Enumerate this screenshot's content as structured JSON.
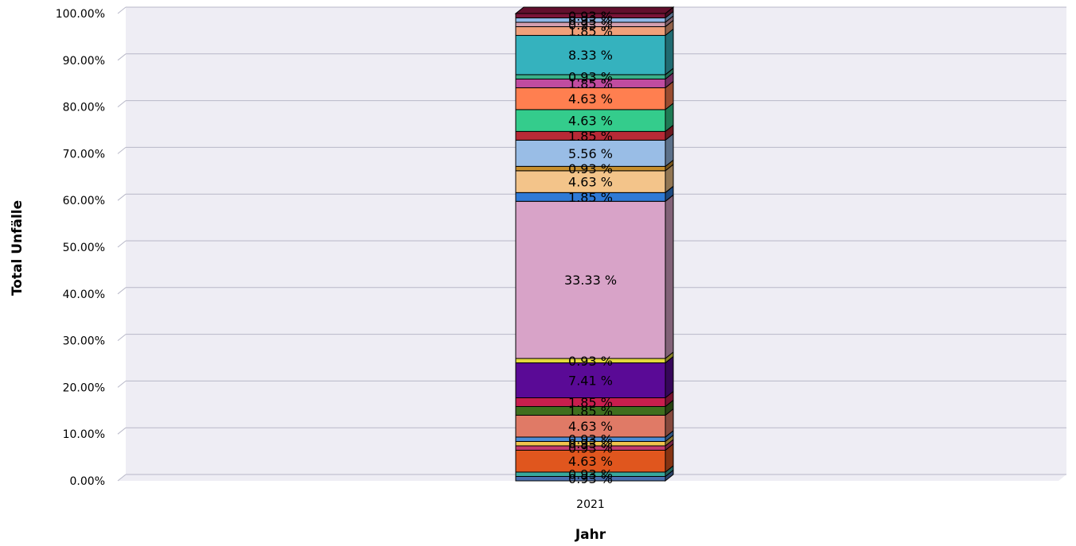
{
  "chart_data": {
    "type": "bar",
    "stacked": true,
    "percent_stacked": true,
    "three_d": true,
    "categories": [
      "2021"
    ],
    "xlabel": "Jahr",
    "ylabel": "Total Unfälle",
    "ylim": [
      0,
      100
    ],
    "yticks": [
      "0.00%",
      "10.00%",
      "20.00%",
      "30.00%",
      "40.00%",
      "50.00%",
      "60.00%",
      "70.00%",
      "80.00%",
      "90.00%",
      "100.00%"
    ],
    "grid": true,
    "legend": "none",
    "series": [
      {
        "values": [
          0.93
        ],
        "label": "0.93 %",
        "color": "#4a6fb0"
      },
      {
        "values": [
          0.93
        ],
        "label": "0.93 %",
        "color": "#38a89d"
      },
      {
        "values": [
          4.63
        ],
        "label": "4.63 %",
        "color": "#e0561e"
      },
      {
        "values": [
          0.93
        ],
        "label": "0.93 %",
        "color": "#c43a6e"
      },
      {
        "values": [
          0.93
        ],
        "label": "0.93 %",
        "color": "#f2c44d"
      },
      {
        "values": [
          0.93
        ],
        "label": "0.93 %",
        "color": "#4d8ed8"
      },
      {
        "values": [
          4.63
        ],
        "label": "4.63 %",
        "color": "#e07a66"
      },
      {
        "values": [
          1.85
        ],
        "label": "1.85 %",
        "color": "#3f6e1e"
      },
      {
        "values": [
          1.85
        ],
        "label": "1.85 %",
        "color": "#c81e4e"
      },
      {
        "values": [
          7.41
        ],
        "label": "7.41 %",
        "color": "#5a0a96"
      },
      {
        "values": [
          0.93
        ],
        "label": "0.93 %",
        "color": "#e4d93c"
      },
      {
        "values": [
          33.33
        ],
        "label": "33.33 %",
        "color": "#d8a3c8"
      },
      {
        "values": [
          1.85
        ],
        "label": "1.85 %",
        "color": "#2f7ad6"
      },
      {
        "values": [
          4.63
        ],
        "label": "4.63 %",
        "color": "#f3c48a"
      },
      {
        "values": [
          0.93
        ],
        "label": "0.93 %",
        "color": "#c8902e"
      },
      {
        "values": [
          5.56
        ],
        "label": "5.56 %",
        "color": "#99bde6"
      },
      {
        "values": [
          1.85
        ],
        "label": "1.85 %",
        "color": "#b82a36"
      },
      {
        "values": [
          4.63
        ],
        "label": "4.63 %",
        "color": "#34cc8c"
      },
      {
        "values": [
          4.63
        ],
        "label": "4.63 %",
        "color": "#ff7f50"
      },
      {
        "values": [
          1.85
        ],
        "label": "1.85 %",
        "color": "#c04ca0"
      },
      {
        "values": [
          0.93
        ],
        "label": "0.93 %",
        "color": "#3ab08a"
      },
      {
        "values": [
          8.33
        ],
        "label": "8.33 %",
        "color": "#35b2be"
      },
      {
        "values": [
          1.85
        ],
        "label": "1.85 %",
        "color": "#f0a07a"
      },
      {
        "values": [
          0.93
        ],
        "label": "0.93 %",
        "color": "#d39fb0"
      },
      {
        "values": [
          0.93
        ],
        "label": "0.93 %",
        "color": "#8fb8e8"
      },
      {
        "values": [
          0.93
        ],
        "label": "0.93 %",
        "color": "#7a1438"
      }
    ]
  }
}
